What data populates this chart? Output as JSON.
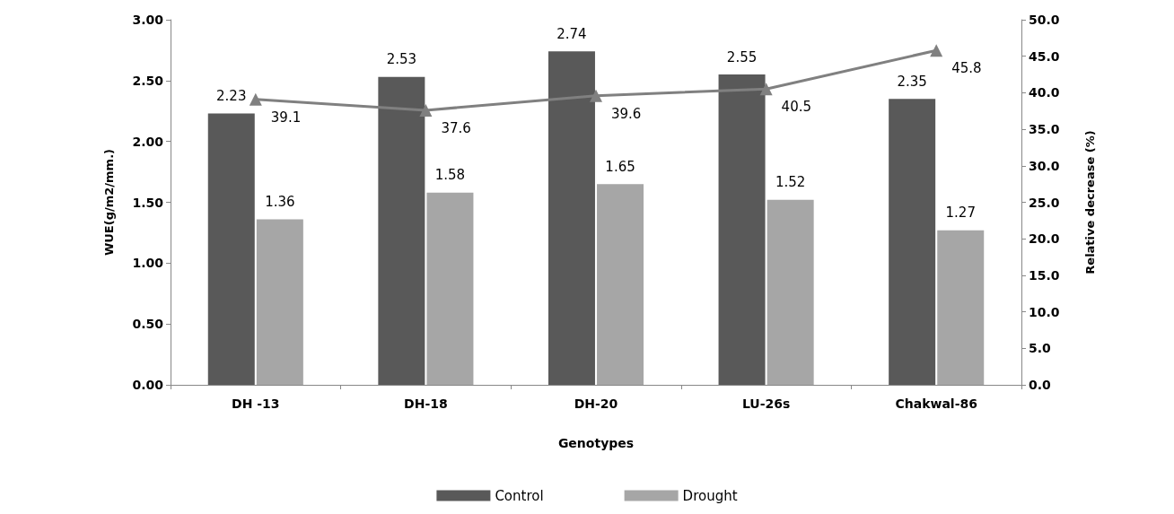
{
  "chart_data": {
    "type": "bar",
    "xlabel": "Genotypes",
    "ylabel": "WUE(g/m2/mm.)",
    "y2label": "Relative decrease (%)",
    "categories": [
      "DH -13",
      "DH-18",
      "DH-20",
      "LU-26s",
      "Chakwal-86"
    ],
    "series": [
      {
        "name": "Control",
        "color": "#595959",
        "values": [
          2.23,
          2.53,
          2.74,
          2.55,
          2.35
        ]
      },
      {
        "name": "Drought",
        "color": "#a6a6a6",
        "values": [
          1.36,
          1.58,
          1.65,
          1.52,
          1.27
        ]
      },
      {
        "type": "line",
        "axis": "y2",
        "color": "#808080",
        "values": [
          39.1,
          37.6,
          39.6,
          40.5,
          45.8
        ]
      }
    ],
    "ylim": [
      0,
      3
    ],
    "yticks": [
      {
        "value": 0,
        "label": "0.00"
      },
      {
        "value": 0.5,
        "label": "0.50"
      },
      {
        "value": 1,
        "label": "1.00"
      },
      {
        "value": 1.5,
        "label": "1.50"
      },
      {
        "value": 2,
        "label": "2.00"
      },
      {
        "value": 2.5,
        "label": "2.50"
      },
      {
        "value": 3,
        "label": "3.00"
      }
    ],
    "y2lim": [
      0,
      50
    ],
    "y2ticks": [
      {
        "value": 0,
        "label": "0.0"
      },
      {
        "value": 5,
        "label": "5.0"
      },
      {
        "value": 10,
        "label": "10.0"
      },
      {
        "value": 15,
        "label": "15.0"
      },
      {
        "value": 20,
        "label": "20.0"
      },
      {
        "value": 25,
        "label": "25.0"
      },
      {
        "value": 30,
        "label": "30.0"
      },
      {
        "value": 35,
        "label": "35.0"
      },
      {
        "value": 40,
        "label": "40.0"
      },
      {
        "value": 45,
        "label": "45.0"
      },
      {
        "value": 50,
        "label": "50.0"
      }
    ],
    "data_labels": true,
    "marker": "triangle",
    "legend": "bottom",
    "grid": false
  }
}
